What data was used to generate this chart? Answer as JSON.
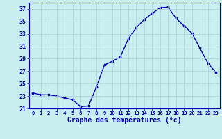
{
  "hours": [
    0,
    1,
    2,
    3,
    4,
    5,
    6,
    7,
    8,
    9,
    10,
    11,
    12,
    13,
    14,
    15,
    16,
    17,
    18,
    19,
    20,
    21,
    22,
    23
  ],
  "temps": [
    23.5,
    23.2,
    23.2,
    23.0,
    22.7,
    22.4,
    21.3,
    21.4,
    24.5,
    28.0,
    28.6,
    29.3,
    32.2,
    34.0,
    35.3,
    36.3,
    37.2,
    37.3,
    35.5,
    34.3,
    33.1,
    30.7,
    28.3,
    26.8
  ],
  "line_color": "#0000aa",
  "marker": ".",
  "bg_color": "#c8eef0",
  "grid_color": "#aad4d8",
  "xlabel": "Graphe des températures (°c)",
  "tick_label_color": "#0000aa",
  "ylim": [
    21,
    38
  ],
  "yticks": [
    21,
    23,
    25,
    27,
    29,
    31,
    33,
    35,
    37
  ],
  "spine_color": "#0000aa",
  "marker_size": 3.5,
  "line_width": 1.0,
  "xtick_fontsize": 5.2,
  "ytick_fontsize": 6.0,
  "xlabel_fontsize": 7.0
}
